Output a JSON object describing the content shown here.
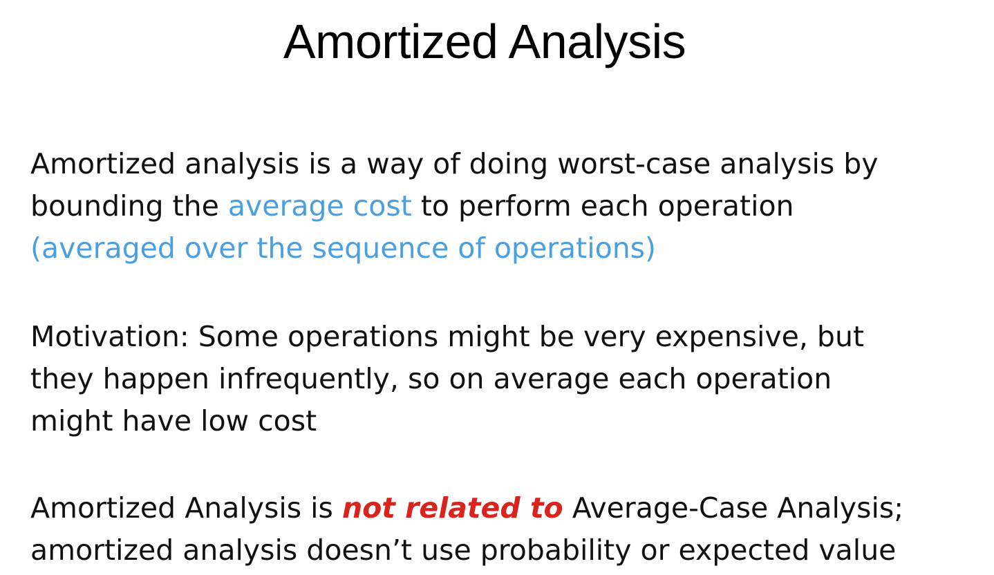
{
  "slide": {
    "title": "Amortized Analysis",
    "paragraph1": {
      "line1": "Amortized analysis is a way of doing worst-case analysis by",
      "line2_prefix": "bounding the ",
      "line2_highlight": "average cost",
      "line2_suffix": " to perform each operation",
      "line3_highlight": "(averaged over the sequence of operations)"
    },
    "paragraph2": {
      "line1": "Motivation: Some operations might be very expensive, but",
      "line2": "they happen infrequently, so on average each operation",
      "line3": "might have low cost"
    },
    "paragraph3": {
      "line1_prefix": "Amortized Analysis is ",
      "line1_emphasis": "not related to",
      "line1_suffix": " Average-Case Analysis;",
      "line2": "amortized analysis doesn’t use probability or expected value"
    }
  },
  "colors": {
    "highlight_blue": "#4a9fe0",
    "emphasis_red": "#d8241c",
    "text": "#111111",
    "background": "#ffffff"
  }
}
